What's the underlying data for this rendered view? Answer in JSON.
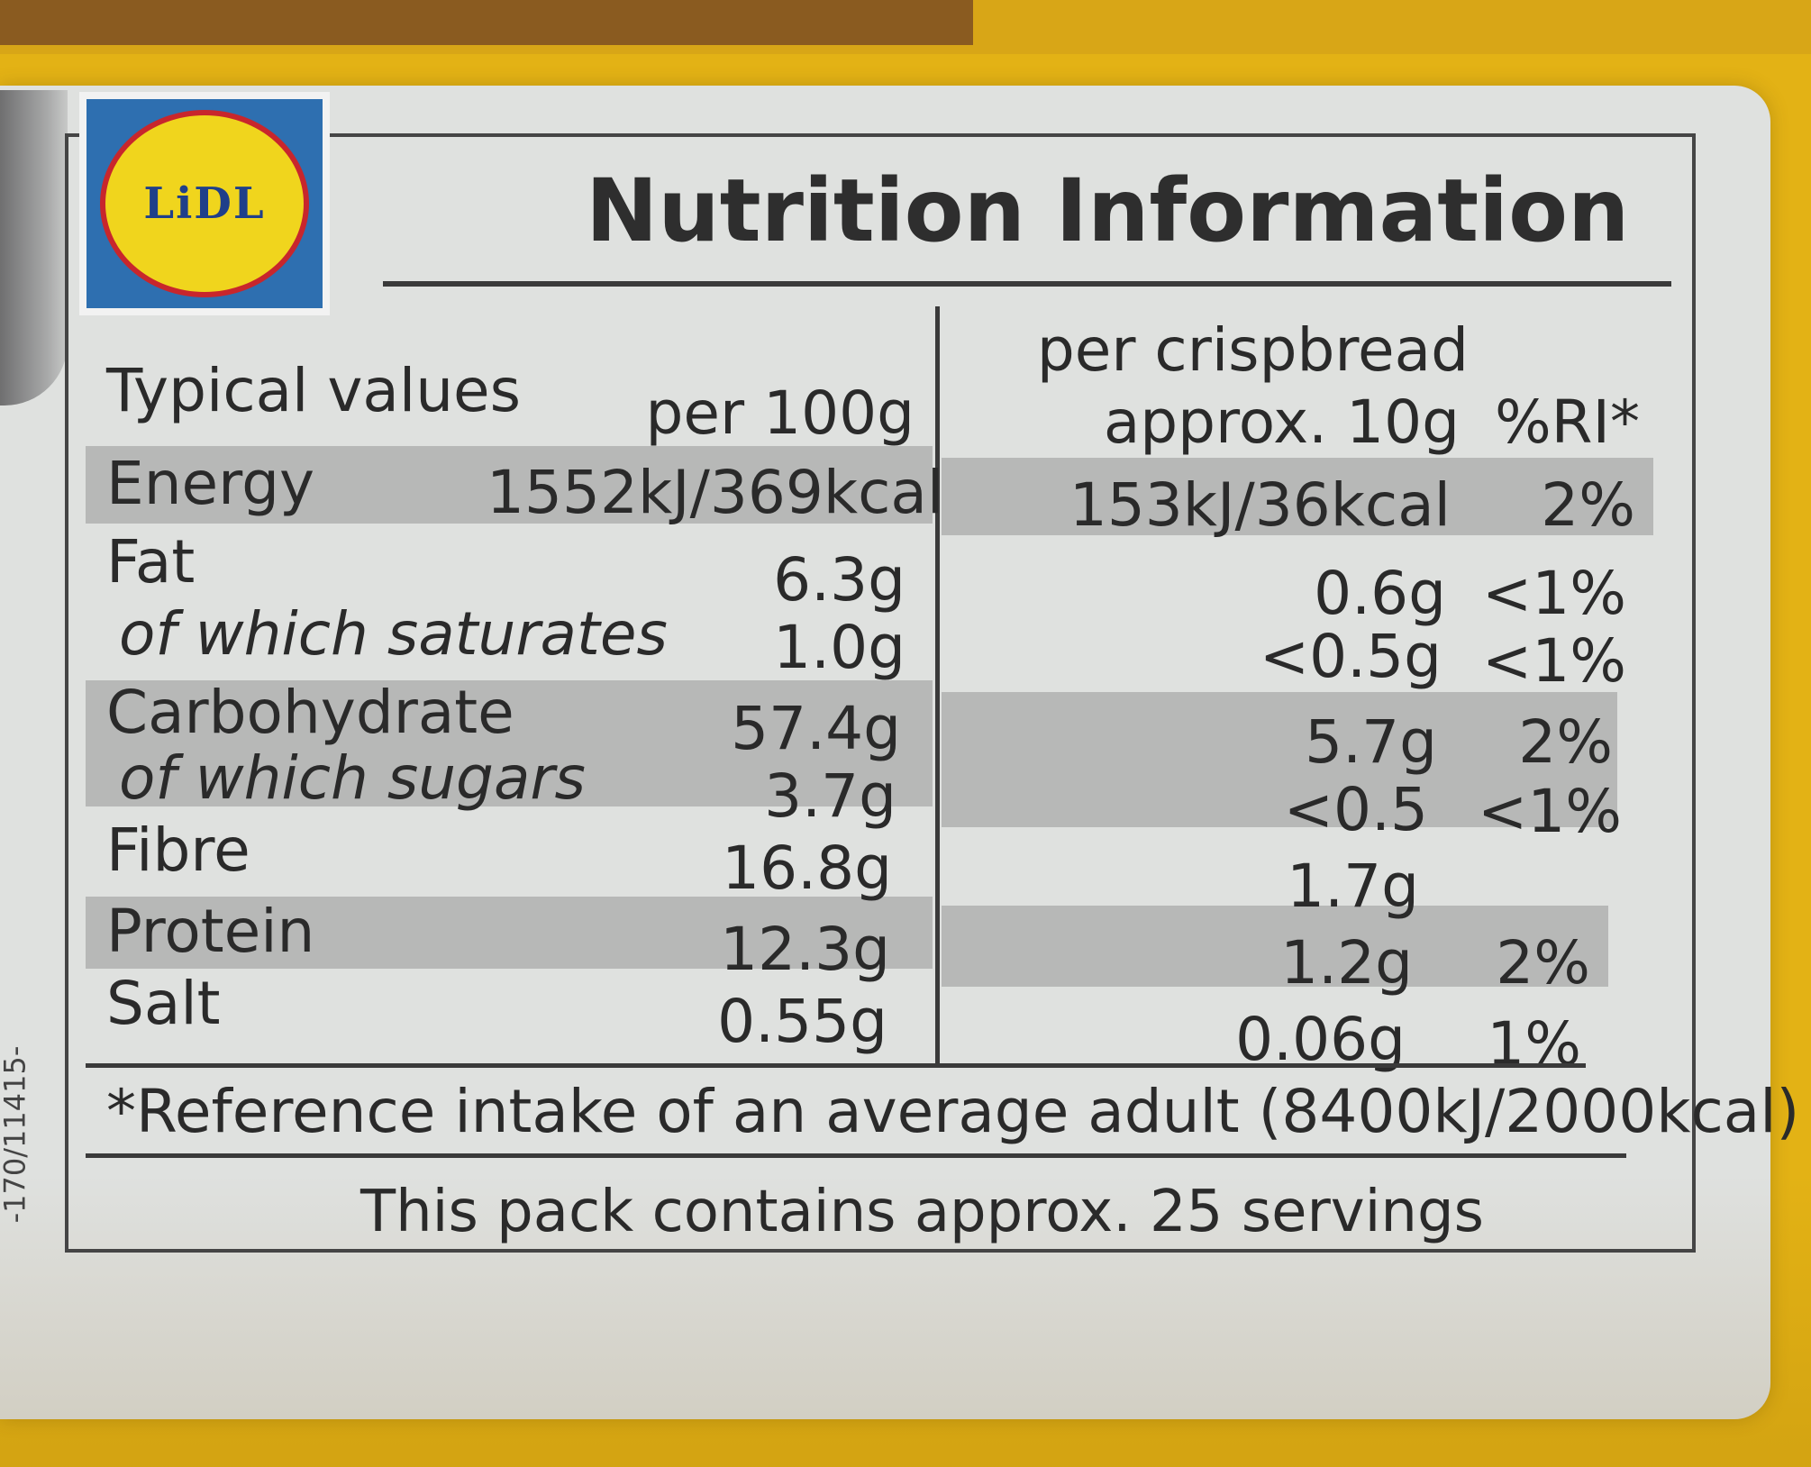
{
  "logo": {
    "text": "LiDL"
  },
  "title": "Nutrition Information",
  "side_code": "-170/11415-",
  "header": {
    "typical_values": "Typical values",
    "per_100g": "per 100g",
    "per_crispbread": "per crispbread",
    "approx": "approx. 10g",
    "ri": "%RI*"
  },
  "rows": [
    {
      "label": "Energy",
      "per100": "1552kJ/369kcal",
      "per": "153kJ/36kcal",
      "ri": "2%"
    },
    {
      "label": "Fat",
      "per100": "6.3g",
      "per": "0.6g",
      "ri": "<1%"
    },
    {
      "label": "of which saturates",
      "per100": "1.0g",
      "per": "<0.5g",
      "ri": "<1%"
    },
    {
      "label": "Carbohydrate",
      "per100": "57.4g",
      "per": "5.7g",
      "ri": "2%"
    },
    {
      "label": "of which sugars",
      "per100": "3.7g",
      "per": "<0.5",
      "ri": "<1%"
    },
    {
      "label": "Fibre",
      "per100": "16.8g",
      "per": "1.7g",
      "ri": ""
    },
    {
      "label": "Protein",
      "per100": "12.3g",
      "per": "1.2g",
      "ri": "2%"
    },
    {
      "label": "Salt",
      "per100": "0.55g",
      "per": "0.06g",
      "ri": "1%"
    }
  ],
  "footnote": "*Reference intake of an average adult (8400kJ/2000kcal)",
  "servings": "This pack contains approx. 25 servings"
}
